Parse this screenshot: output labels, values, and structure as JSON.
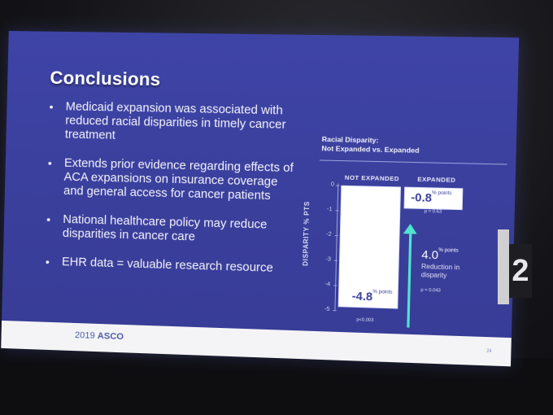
{
  "slide": {
    "title": "Conclusions",
    "bullets": [
      "Medicaid expansion was associated with reduced racial disparities in timely cancer treatment",
      "Extends prior evidence regarding effects of ACA expansions on insurance coverage and general access for cancer patients",
      "National healthcare policy may reduce disparities in cancer care",
      "EHR data = valuable research resource"
    ],
    "bullet_glyph": "•"
  },
  "chart_data": {
    "type": "bar",
    "title": "Racial Disparity:",
    "subtitle": "Not Expanded vs. Expanded",
    "categories": [
      "NOT EXPANDED",
      "EXPANDED"
    ],
    "values": [
      -4.8,
      -0.8
    ],
    "ylabel": "DISPARITY % PTS",
    "ylim": [
      -5,
      0
    ],
    "y_ticks": [
      "0",
      "-1",
      "-2",
      "-3",
      "-4",
      "-5"
    ],
    "value_labels": [
      "-4.8",
      "-0.8"
    ],
    "value_unit": "% points",
    "p_values": [
      "p<0.003",
      "p = 0.63"
    ],
    "annotation": {
      "value": "4.0",
      "unit": "% points",
      "label": "Reduction in disparity",
      "p_value": "p = 0.043"
    },
    "colors": {
      "bars": "#ffffff",
      "arrow": "#51e3cf",
      "background": "#3c42a2"
    }
  },
  "footer": {
    "logo_year": "2019",
    "logo_name": "ASCO",
    "page": "24"
  },
  "room": {
    "sign_number": "2"
  }
}
